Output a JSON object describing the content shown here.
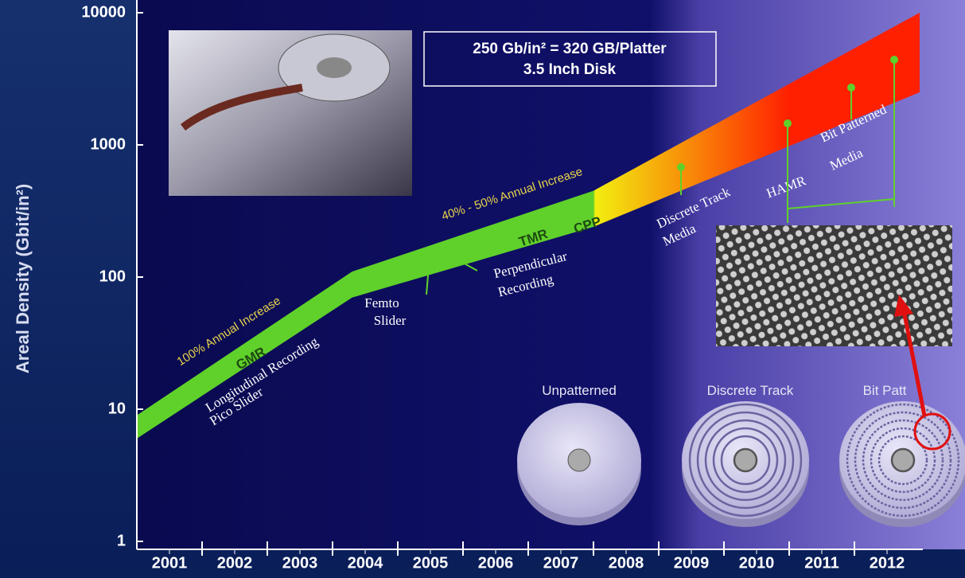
{
  "chart_data": {
    "type": "band",
    "ylabel": "Areal Density (Gbit/in²)",
    "log_y": true,
    "ylim": [
      1,
      10000
    ],
    "yticks": [
      1,
      10,
      100,
      1000,
      10000
    ],
    "xlim": [
      2000.5,
      2012.5
    ],
    "xticks": [
      2001,
      2002,
      2003,
      2004,
      2005,
      2006,
      2007,
      2008,
      2009,
      2010,
      2011,
      2012
    ],
    "band": {
      "x": [
        2000.5,
        2003.8,
        2007.5,
        2012.5
      ],
      "upper": [
        9,
        110,
        450,
        10000
      ],
      "lower": [
        6,
        70,
        240,
        2500
      ],
      "colors": [
        "#5fd12a",
        "#f2ee10",
        "#ff2000"
      ]
    },
    "info_box": [
      "250 Gb/in² = 320 GB/Platter",
      "3.5 Inch Disk"
    ],
    "annotations": [
      "100% Annual Increase",
      "GMR",
      "Longitudinal Recording",
      "Pico Slider",
      "Femto",
      "Slider",
      "Perpendicular",
      "Recording",
      "40% - 50% Annual Increase",
      "TMR",
      "CPP",
      "Discrete Track",
      "Media",
      "HAMR",
      "Bit Patterned",
      "Media"
    ],
    "disk_labels": [
      "Unpatterned",
      "Discrete Track",
      "Bit Patt"
    ]
  }
}
